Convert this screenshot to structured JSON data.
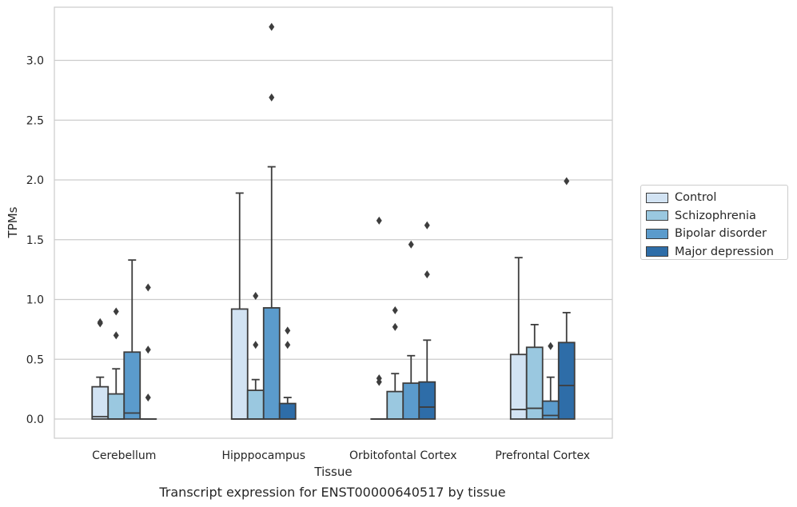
{
  "chart_data": {
    "type": "box",
    "xlabel": "Tissue",
    "ylabel": "TPMs",
    "caption": "Transcript expression for ENST00000640517 by tissue",
    "ylim": [
      -0.16,
      3.44
    ],
    "yticks": [
      "0.0",
      "0.5",
      "1.0",
      "1.5",
      "2.0",
      "2.5",
      "3.0"
    ],
    "ytick_values": [
      0,
      0.5,
      1.0,
      1.5,
      2.0,
      2.5,
      3.0
    ],
    "grid": "horizontal",
    "legend_position": "right",
    "categories": [
      "Cerebellum",
      "Hipppocampus",
      "Orbitofontal Cortex",
      "Prefrontal Cortex"
    ],
    "series": [
      {
        "name": "Control",
        "color": "#d2e3f3",
        "boxes": [
          {
            "q1": 0,
            "median": 0.02,
            "q3": 0.27,
            "whisker_low": 0,
            "whisker_high": 0.35,
            "outliers": [
              0.8,
              0.81
            ]
          },
          {
            "q1": 0,
            "median": 0,
            "q3": 0.92,
            "whisker_low": 0,
            "whisker_high": 1.89,
            "outliers": []
          },
          {
            "q1": 0,
            "median": 0,
            "q3": 0,
            "whisker_low": 0,
            "whisker_high": 0,
            "outliers": [
              0.31,
              0.34,
              1.66
            ]
          },
          {
            "q1": 0,
            "median": 0.08,
            "q3": 0.54,
            "whisker_low": 0,
            "whisker_high": 1.35,
            "outliers": []
          }
        ]
      },
      {
        "name": "Schizophrenia",
        "color": "#9ac8e0",
        "boxes": [
          {
            "q1": 0,
            "median": 0,
            "q3": 0.21,
            "whisker_low": 0,
            "whisker_high": 0.42,
            "outliers": [
              0.7,
              0.9
            ]
          },
          {
            "q1": 0,
            "median": 0,
            "q3": 0.24,
            "whisker_low": 0,
            "whisker_high": 0.33,
            "outliers": [
              0.62,
              1.03
            ]
          },
          {
            "q1": 0,
            "median": 0,
            "q3": 0.23,
            "whisker_low": 0,
            "whisker_high": 0.38,
            "outliers": [
              0.77,
              0.91
            ]
          },
          {
            "q1": 0,
            "median": 0.09,
            "q3": 0.6,
            "whisker_low": 0,
            "whisker_high": 0.79,
            "outliers": []
          }
        ]
      },
      {
        "name": "Bipolar disorder",
        "color": "#5b9bcc",
        "boxes": [
          {
            "q1": 0,
            "median": 0.05,
            "q3": 0.56,
            "whisker_low": 0,
            "whisker_high": 1.33,
            "outliers": []
          },
          {
            "q1": 0,
            "median": 0,
            "q3": 0.93,
            "whisker_low": 0,
            "whisker_high": 2.11,
            "outliers": [
              2.69,
              3.28
            ]
          },
          {
            "q1": 0,
            "median": 0,
            "q3": 0.3,
            "whisker_low": 0,
            "whisker_high": 0.53,
            "outliers": [
              1.46
            ]
          },
          {
            "q1": 0,
            "median": 0.03,
            "q3": 0.15,
            "whisker_low": 0,
            "whisker_high": 0.35,
            "outliers": [
              0.61
            ]
          }
        ]
      },
      {
        "name": "Major depression",
        "color": "#2e6da8",
        "boxes": [
          {
            "q1": 0,
            "median": 0,
            "q3": 0,
            "whisker_low": 0,
            "whisker_high": 0,
            "outliers": [
              0.18,
              0.58,
              1.1
            ]
          },
          {
            "q1": 0,
            "median": 0,
            "q3": 0.13,
            "whisker_low": 0,
            "whisker_high": 0.18,
            "outliers": [
              0.62,
              0.74
            ]
          },
          {
            "q1": 0,
            "median": 0.1,
            "q3": 0.31,
            "whisker_low": 0,
            "whisker_high": 0.66,
            "outliers": [
              1.21,
              1.62
            ]
          },
          {
            "q1": 0,
            "median": 0.28,
            "q3": 0.64,
            "whisker_low": 0,
            "whisker_high": 0.89,
            "outliers": [
              1.99
            ]
          }
        ]
      }
    ]
  }
}
